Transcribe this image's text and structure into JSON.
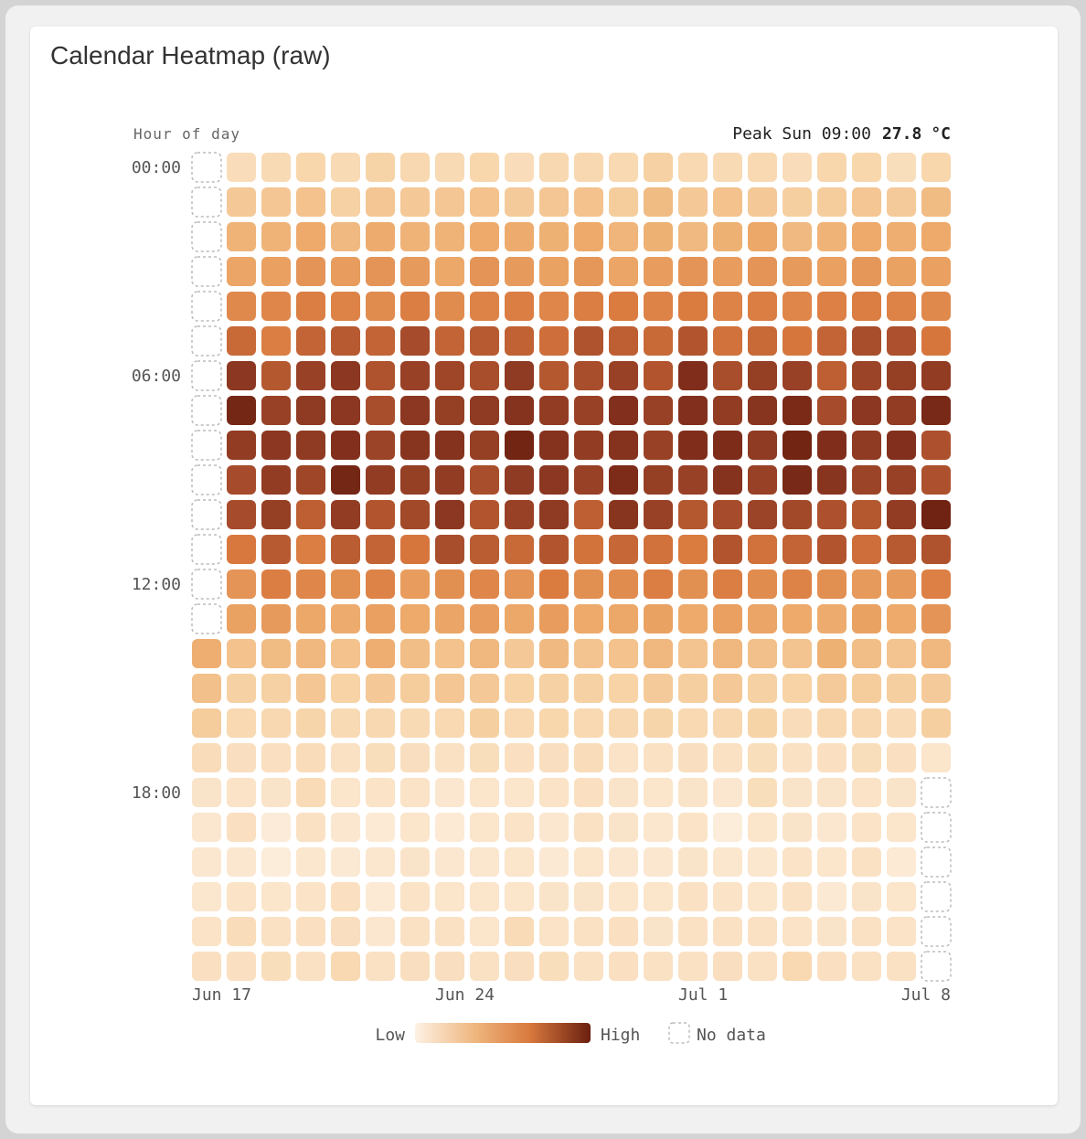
{
  "card": {
    "title": "Calendar Heatmap (raw)"
  },
  "chart_data": {
    "type": "heatmap",
    "title": "Calendar Heatmap (raw)",
    "ylabel": "Hour of day",
    "y_tick_labels": [
      "00:00",
      "06:00",
      "12:00",
      "18:00"
    ],
    "x_tick_labels": [
      "Jun 17",
      "Jun 24",
      "Jul 1",
      "Jul 8"
    ],
    "x_days": [
      "Jun 17",
      "Jun 18",
      "Jun 19",
      "Jun 20",
      "Jun 21",
      "Jun 22",
      "Jun 23",
      "Jun 24",
      "Jun 25",
      "Jun 26",
      "Jun 27",
      "Jun 28",
      "Jun 29",
      "Jun 30",
      "Jul 1",
      "Jul 2",
      "Jul 3",
      "Jul 4",
      "Jul 5",
      "Jul 6",
      "Jul 7",
      "Jul 8"
    ],
    "y_hours": [
      "00:00",
      "01:00",
      "02:00",
      "03:00",
      "04:00",
      "05:00",
      "06:00",
      "07:00",
      "08:00",
      "09:00",
      "10:00",
      "11:00",
      "12:00",
      "13:00",
      "14:00",
      "15:00",
      "16:00",
      "17:00",
      "18:00",
      "19:00",
      "20:00",
      "21:00",
      "22:00",
      "23:00"
    ],
    "unit": "°C",
    "peak": {
      "label": "Peak Sun 09:00",
      "value": "27.8",
      "unit": "°C"
    },
    "legend": {
      "low": "Low",
      "high": "High",
      "no_data": "No data",
      "placement": "bottom-center"
    },
    "colors": {
      "low": "#fdf1e4",
      "mid": "#e8965a",
      "high": "#6b1f10",
      "no_data_stroke": "#bbbbbb"
    },
    "value_range": [
      0,
      1
    ],
    "intensity": [
      [
        null,
        0.17,
        0.19,
        0.22,
        0.19,
        0.24,
        0.21,
        0.19,
        0.22,
        0.17,
        0.21,
        0.21,
        0.2,
        0.26,
        0.2,
        0.19,
        0.2,
        0.17,
        0.22,
        0.22,
        0.16,
        0.22
      ],
      [
        null,
        0.3,
        0.31,
        0.33,
        0.26,
        0.31,
        0.3,
        0.31,
        0.33,
        0.29,
        0.31,
        0.33,
        0.28,
        0.36,
        0.3,
        0.33,
        0.3,
        0.27,
        0.28,
        0.31,
        0.29,
        0.36
      ],
      [
        null,
        0.4,
        0.4,
        0.44,
        0.37,
        0.43,
        0.4,
        0.4,
        0.44,
        0.43,
        0.41,
        0.44,
        0.39,
        0.41,
        0.37,
        0.41,
        0.45,
        0.37,
        0.4,
        0.44,
        0.42,
        0.44
      ],
      [
        null,
        0.46,
        0.48,
        0.52,
        0.49,
        0.52,
        0.5,
        0.45,
        0.52,
        0.5,
        0.47,
        0.51,
        0.46,
        0.49,
        0.52,
        0.49,
        0.52,
        0.5,
        0.48,
        0.51,
        0.47,
        0.48
      ],
      [
        null,
        0.56,
        0.57,
        0.6,
        0.58,
        0.55,
        0.6,
        0.55,
        0.58,
        0.6,
        0.57,
        0.6,
        0.61,
        0.58,
        0.61,
        0.58,
        0.6,
        0.57,
        0.59,
        0.6,
        0.58,
        0.56
      ],
      [
        null,
        0.68,
        0.6,
        0.7,
        0.74,
        0.7,
        0.8,
        0.7,
        0.74,
        0.71,
        0.66,
        0.77,
        0.72,
        0.68,
        0.76,
        0.65,
        0.68,
        0.63,
        0.7,
        0.79,
        0.78,
        0.63
      ],
      [
        null,
        0.88,
        0.75,
        0.84,
        0.88,
        0.77,
        0.84,
        0.82,
        0.79,
        0.87,
        0.75,
        0.79,
        0.84,
        0.76,
        0.92,
        0.79,
        0.85,
        0.84,
        0.72,
        0.83,
        0.85,
        0.86
      ],
      [
        null,
        0.96,
        0.84,
        0.87,
        0.88,
        0.79,
        0.88,
        0.85,
        0.87,
        0.9,
        0.86,
        0.84,
        0.91,
        0.84,
        0.91,
        0.86,
        0.89,
        0.94,
        0.8,
        0.88,
        0.86,
        0.95
      ],
      [
        null,
        0.86,
        0.88,
        0.87,
        0.91,
        0.83,
        0.89,
        0.9,
        0.85,
        0.97,
        0.9,
        0.86,
        0.9,
        0.84,
        0.92,
        0.93,
        0.87,
        0.97,
        0.92,
        0.87,
        0.91,
        0.78
      ],
      [
        null,
        0.8,
        0.86,
        0.82,
        0.96,
        0.86,
        0.85,
        0.86,
        0.79,
        0.87,
        0.88,
        0.84,
        0.93,
        0.85,
        0.84,
        0.9,
        0.84,
        0.95,
        0.89,
        0.83,
        0.84,
        0.78
      ],
      [
        null,
        0.8,
        0.85,
        0.72,
        0.86,
        0.76,
        0.81,
        0.88,
        0.76,
        0.84,
        0.87,
        0.72,
        0.89,
        0.84,
        0.75,
        0.8,
        0.83,
        0.81,
        0.78,
        0.75,
        0.86,
        0.98
      ],
      [
        null,
        0.62,
        0.74,
        0.6,
        0.73,
        0.7,
        0.63,
        0.79,
        0.73,
        0.68,
        0.76,
        0.64,
        0.69,
        0.65,
        0.61,
        0.76,
        0.65,
        0.7,
        0.76,
        0.66,
        0.74,
        0.77
      ],
      [
        null,
        0.52,
        0.6,
        0.57,
        0.54,
        0.58,
        0.49,
        0.54,
        0.57,
        0.52,
        0.61,
        0.54,
        0.55,
        0.6,
        0.54,
        0.6,
        0.55,
        0.58,
        0.54,
        0.5,
        0.5,
        0.59
      ],
      [
        null,
        0.47,
        0.5,
        0.45,
        0.43,
        0.48,
        0.44,
        0.46,
        0.49,
        0.45,
        0.49,
        0.44,
        0.45,
        0.47,
        0.44,
        0.48,
        0.46,
        0.44,
        0.43,
        0.47,
        0.44,
        0.52
      ],
      [
        0.42,
        0.33,
        0.36,
        0.38,
        0.33,
        0.42,
        0.35,
        0.33,
        0.38,
        0.3,
        0.37,
        0.32,
        0.33,
        0.38,
        0.32,
        0.38,
        0.34,
        0.32,
        0.41,
        0.35,
        0.32,
        0.38
      ],
      [
        0.34,
        0.26,
        0.26,
        0.31,
        0.25,
        0.3,
        0.28,
        0.31,
        0.3,
        0.25,
        0.26,
        0.26,
        0.25,
        0.29,
        0.27,
        0.3,
        0.26,
        0.25,
        0.29,
        0.28,
        0.27,
        0.29
      ],
      [
        0.28,
        0.2,
        0.21,
        0.23,
        0.19,
        0.21,
        0.19,
        0.2,
        0.27,
        0.2,
        0.22,
        0.2,
        0.21,
        0.23,
        0.2,
        0.21,
        0.24,
        0.17,
        0.21,
        0.21,
        0.18,
        0.27
      ],
      [
        0.17,
        0.15,
        0.14,
        0.17,
        0.13,
        0.16,
        0.15,
        0.13,
        0.16,
        0.14,
        0.15,
        0.17,
        0.12,
        0.13,
        0.15,
        0.13,
        0.16,
        0.13,
        0.14,
        0.16,
        0.14,
        0.1
      ],
      [
        0.11,
        0.12,
        0.11,
        0.18,
        0.1,
        0.12,
        0.12,
        0.08,
        0.1,
        0.1,
        0.12,
        0.14,
        0.11,
        0.1,
        0.11,
        0.08,
        0.16,
        0.11,
        0.11,
        0.12,
        0.11,
        null
      ],
      [
        0.08,
        0.14,
        0.05,
        0.13,
        0.08,
        0.06,
        0.1,
        0.06,
        0.1,
        0.12,
        0.08,
        0.13,
        0.11,
        0.09,
        0.12,
        0.04,
        0.1,
        0.11,
        0.08,
        0.12,
        0.1,
        null
      ],
      [
        0.08,
        0.08,
        0.04,
        0.09,
        0.07,
        0.09,
        0.11,
        0.08,
        0.09,
        0.1,
        0.07,
        0.1,
        0.08,
        0.08,
        0.11,
        0.09,
        0.09,
        0.12,
        0.1,
        0.13,
        0.06,
        null
      ],
      [
        0.09,
        0.12,
        0.1,
        0.12,
        0.14,
        0.06,
        0.12,
        0.1,
        0.1,
        0.1,
        0.11,
        0.11,
        0.1,
        0.1,
        0.13,
        0.12,
        0.1,
        0.13,
        0.07,
        0.11,
        0.1,
        null
      ],
      [
        0.12,
        0.17,
        0.13,
        0.14,
        0.15,
        0.08,
        0.13,
        0.13,
        0.1,
        0.18,
        0.12,
        0.13,
        0.14,
        0.11,
        0.13,
        0.13,
        0.13,
        0.12,
        0.11,
        0.13,
        0.12,
        null
      ],
      [
        0.14,
        0.14,
        0.16,
        0.13,
        0.2,
        0.13,
        0.15,
        0.15,
        0.13,
        0.15,
        0.16,
        0.13,
        0.14,
        0.13,
        0.13,
        0.15,
        0.13,
        0.2,
        0.14,
        0.13,
        0.13,
        null
      ]
    ]
  }
}
